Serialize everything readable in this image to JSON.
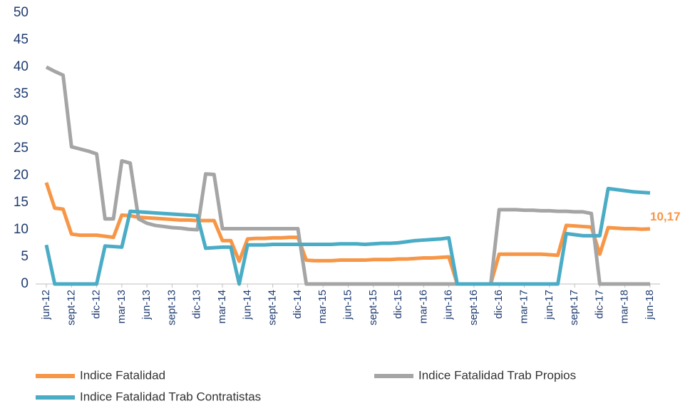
{
  "chart_data": {
    "type": "line",
    "categories": [
      "jun-12",
      null,
      null,
      "sept-12",
      null,
      null,
      "dic-12",
      null,
      null,
      "mar-13",
      null,
      null,
      "jun-13",
      null,
      null,
      "sept-13",
      null,
      null,
      "dic-13",
      null,
      null,
      "mar-14",
      null,
      null,
      "jun-14",
      null,
      null,
      "sept-14",
      null,
      null,
      "dic-14",
      null,
      null,
      "mar-15",
      null,
      null,
      "jun-15",
      null,
      null,
      "sept-15",
      null,
      null,
      "dic-15",
      null,
      null,
      "mar-16",
      null,
      null,
      "jun-16",
      null,
      null,
      "sept-16",
      null,
      null,
      "dic-16",
      null,
      null,
      "mar-17",
      null,
      null,
      "jun-17",
      null,
      null,
      "sept-17",
      null,
      null,
      "dic-17",
      null,
      null,
      "mar-18",
      null,
      null,
      "jun-18"
    ],
    "series": [
      {
        "name": "Indice Fatalidad",
        "color": "#f79646",
        "values": [
          18.7,
          14,
          13.8,
          9.2,
          9,
          9,
          9,
          8.8,
          8.6,
          12.7,
          12.6,
          12.3,
          12.2,
          12.1,
          12,
          11.9,
          11.8,
          11.8,
          11.7,
          11.7,
          11.7,
          8,
          8,
          4.2,
          8.3,
          8.4,
          8.4,
          8.5,
          8.5,
          8.6,
          8.6,
          4.4,
          4.3,
          4.3,
          4.3,
          4.4,
          4.4,
          4.4,
          4.4,
          4.5,
          4.5,
          4.5,
          4.6,
          4.6,
          4.7,
          4.8,
          4.8,
          4.9,
          5,
          0,
          0,
          0,
          0,
          0,
          5.5,
          5.5,
          5.5,
          5.5,
          5.5,
          5.5,
          5.4,
          5.3,
          10.8,
          10.7,
          10.6,
          10.5,
          5.5,
          10.4,
          10.3,
          10.2,
          10.2,
          10.1,
          10.17
        ],
        "value_labels": [
          null,
          null,
          null,
          null,
          null,
          null,
          null,
          null,
          null,
          null,
          null,
          null,
          null,
          null,
          null,
          null,
          null,
          null,
          null,
          null,
          null,
          null,
          null,
          null,
          null,
          null,
          null,
          null,
          null,
          null,
          null,
          null,
          null,
          null,
          null,
          null,
          null,
          null,
          null,
          null,
          null,
          null,
          null,
          null,
          null,
          null,
          null,
          null,
          null,
          null,
          null,
          null,
          null,
          null,
          null,
          null,
          null,
          null,
          null,
          null,
          null,
          null,
          null,
          null,
          null,
          null,
          null,
          null,
          null,
          null,
          null,
          null,
          "10,17"
        ]
      },
      {
        "name": "Indice Fatalidad Trab Propios",
        "color": "#a5a5a5",
        "values": [
          40,
          39.2,
          38.5,
          25.3,
          24.9,
          24.5,
          24,
          12,
          12,
          22.7,
          22.3,
          12,
          11.2,
          10.8,
          10.6,
          10.4,
          10.3,
          10.1,
          10,
          20.3,
          20.2,
          10.2,
          10.2,
          10.2,
          10.2,
          10.2,
          10.2,
          10.2,
          10.2,
          10.2,
          10.2,
          0,
          0,
          0,
          0,
          0,
          0,
          0,
          0,
          0,
          0,
          0,
          0,
          0,
          0,
          0,
          0,
          0,
          0,
          0,
          0,
          0,
          0,
          0,
          13.7,
          13.7,
          13.7,
          13.6,
          13.6,
          13.5,
          13.5,
          13.4,
          13.4,
          13.3,
          13.3,
          13,
          0,
          0,
          0,
          0,
          0,
          0,
          0
        ]
      },
      {
        "name": "Indice Fatalidad Trab Contratistas",
        "color": "#4bacc6",
        "values": [
          7.2,
          0,
          0,
          0,
          0,
          0,
          0,
          7,
          6.9,
          6.8,
          13.4,
          13.3,
          13.2,
          13.1,
          13,
          12.9,
          12.8,
          12.7,
          12.6,
          6.6,
          6.7,
          6.8,
          6.8,
          0,
          7.2,
          7.2,
          7.2,
          7.3,
          7.3,
          7.3,
          7.3,
          7.3,
          7.3,
          7.3,
          7.3,
          7.4,
          7.4,
          7.4,
          7.3,
          7.4,
          7.5,
          7.5,
          7.6,
          7.8,
          8,
          8.1,
          8.2,
          8.3,
          8.5,
          0,
          0,
          0,
          0,
          0,
          0,
          0,
          0,
          0,
          0,
          0,
          0,
          0,
          9.3,
          9.1,
          8.9,
          8.9,
          8.9,
          17.6,
          17.4,
          17.2,
          17.0,
          16.9,
          16.8
        ]
      }
    ],
    "ylim": [
      0,
      50
    ],
    "yticks": [
      0,
      5,
      10,
      15,
      20,
      25,
      30,
      35,
      40,
      45,
      50
    ],
    "grid": false,
    "legend": "bottom"
  }
}
